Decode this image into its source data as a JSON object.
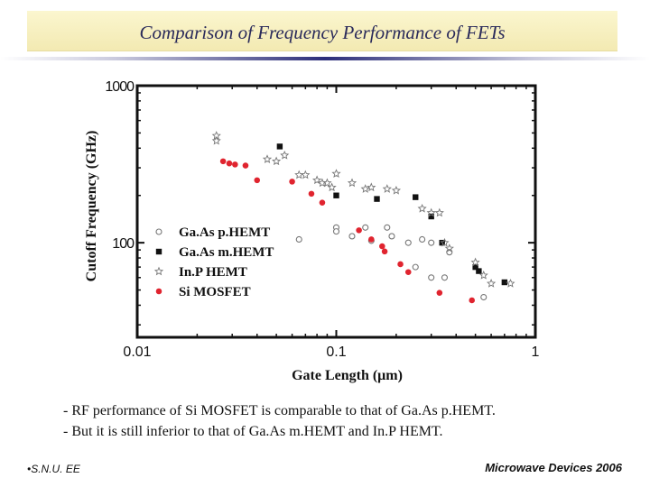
{
  "header": {
    "title": "Comparison of Frequency Performance of FETs"
  },
  "chart_data": {
    "type": "scatter",
    "title": "",
    "xlabel": "Gate Length (μm)",
    "ylabel": "Cutoff Frequency (GHz)",
    "x_scale": "log",
    "y_scale": "log",
    "xlim": [
      0.01,
      1
    ],
    "ylim": [
      25,
      1000
    ],
    "x_ticks": [
      {
        "value": 0.01,
        "label": "0.01"
      },
      {
        "value": 0.1,
        "label": "0.1"
      },
      {
        "value": 1,
        "label": "1"
      }
    ],
    "y_ticks": [
      {
        "value": 100,
        "label": "100"
      },
      {
        "value": 1000,
        "label": "1000"
      }
    ],
    "grid": false,
    "legend_position": "bottom-left",
    "series": [
      {
        "name": "Ga.As p.HEMT",
        "marker": "open-circle",
        "color": "#777777",
        "points": [
          {
            "x": 0.065,
            "y": 105
          },
          {
            "x": 0.1,
            "y": 125
          },
          {
            "x": 0.1,
            "y": 118
          },
          {
            "x": 0.12,
            "y": 110
          },
          {
            "x": 0.14,
            "y": 125
          },
          {
            "x": 0.15,
            "y": 103
          },
          {
            "x": 0.18,
            "y": 125
          },
          {
            "x": 0.19,
            "y": 110
          },
          {
            "x": 0.23,
            "y": 100
          },
          {
            "x": 0.27,
            "y": 105
          },
          {
            "x": 0.3,
            "y": 100
          },
          {
            "x": 0.37,
            "y": 87
          },
          {
            "x": 0.25,
            "y": 70
          },
          {
            "x": 0.3,
            "y": 60
          },
          {
            "x": 0.35,
            "y": 60
          },
          {
            "x": 0.55,
            "y": 45
          }
        ]
      },
      {
        "name": "Ga.As m.HEMT",
        "marker": "filled-square",
        "color": "#111111",
        "points": [
          {
            "x": 0.052,
            "y": 410
          },
          {
            "x": 0.1,
            "y": 200
          },
          {
            "x": 0.16,
            "y": 190
          },
          {
            "x": 0.25,
            "y": 195
          },
          {
            "x": 0.3,
            "y": 147
          },
          {
            "x": 0.34,
            "y": 100
          },
          {
            "x": 0.5,
            "y": 70
          },
          {
            "x": 0.52,
            "y": 66
          },
          {
            "x": 0.7,
            "y": 56
          }
        ]
      },
      {
        "name": "In.P HEMT",
        "marker": "open-star",
        "color": "#777777",
        "points": [
          {
            "x": 0.025,
            "y": 480
          },
          {
            "x": 0.025,
            "y": 445
          },
          {
            "x": 0.045,
            "y": 340
          },
          {
            "x": 0.05,
            "y": 330
          },
          {
            "x": 0.055,
            "y": 360
          },
          {
            "x": 0.065,
            "y": 270
          },
          {
            "x": 0.07,
            "y": 270
          },
          {
            "x": 0.08,
            "y": 250
          },
          {
            "x": 0.085,
            "y": 240
          },
          {
            "x": 0.09,
            "y": 240
          },
          {
            "x": 0.095,
            "y": 225
          },
          {
            "x": 0.1,
            "y": 275
          },
          {
            "x": 0.12,
            "y": 240
          },
          {
            "x": 0.14,
            "y": 220
          },
          {
            "x": 0.15,
            "y": 225
          },
          {
            "x": 0.18,
            "y": 220
          },
          {
            "x": 0.2,
            "y": 215
          },
          {
            "x": 0.27,
            "y": 165
          },
          {
            "x": 0.3,
            "y": 155
          },
          {
            "x": 0.33,
            "y": 155
          },
          {
            "x": 0.35,
            "y": 100
          },
          {
            "x": 0.37,
            "y": 92
          },
          {
            "x": 0.5,
            "y": 75
          },
          {
            "x": 0.55,
            "y": 62
          },
          {
            "x": 0.6,
            "y": 55
          },
          {
            "x": 0.75,
            "y": 55
          }
        ]
      },
      {
        "name": "Si MOSFET",
        "marker": "filled-circle",
        "color": "#e0242f",
        "points": [
          {
            "x": 0.027,
            "y": 330
          },
          {
            "x": 0.029,
            "y": 320
          },
          {
            "x": 0.031,
            "y": 315
          },
          {
            "x": 0.035,
            "y": 310
          },
          {
            "x": 0.04,
            "y": 250
          },
          {
            "x": 0.06,
            "y": 245
          },
          {
            "x": 0.075,
            "y": 205
          },
          {
            "x": 0.085,
            "y": 180
          },
          {
            "x": 0.13,
            "y": 120
          },
          {
            "x": 0.15,
            "y": 105
          },
          {
            "x": 0.17,
            "y": 95
          },
          {
            "x": 0.175,
            "y": 88
          },
          {
            "x": 0.21,
            "y": 73
          },
          {
            "x": 0.23,
            "y": 65
          },
          {
            "x": 0.33,
            "y": 48
          },
          {
            "x": 0.48,
            "y": 43
          }
        ]
      }
    ]
  },
  "notes": [
    "- RF performance of Si MOSFET is comparable to that of Ga.As p.HEMT.",
    "- But it is still inferior to that of Ga.As m.HEMT and In.P HEMT."
  ],
  "footer": {
    "left": "•S.N.U. EE",
    "right": "Microwave Devices 2006"
  }
}
